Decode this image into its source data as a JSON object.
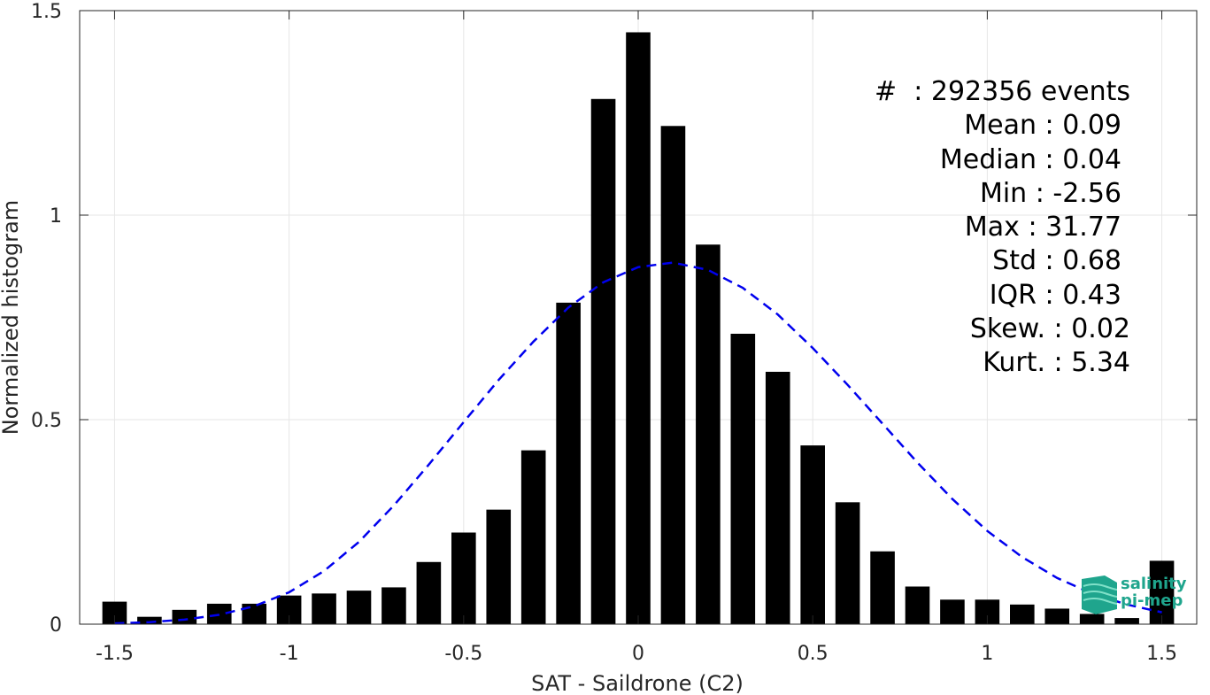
{
  "chart_data": {
    "type": "bar",
    "xlabel": "SAT - Saildrone (C2)",
    "ylabel": "Normalized histogram",
    "xlim": [
      -1.6,
      1.6
    ],
    "ylim": [
      0,
      1.5
    ],
    "xticks": [
      -1.5,
      -1,
      -0.5,
      0,
      0.5,
      1,
      1.5
    ],
    "xtick_labels": [
      "-1.5",
      "-1",
      "-0.5",
      "0",
      "0.5",
      "1",
      "1.5"
    ],
    "yticks": [
      0,
      0.5,
      1,
      1.5
    ],
    "ytick_labels": [
      "0",
      "0.5",
      "1",
      "1.5"
    ],
    "grid": true,
    "bin_width": 0.1,
    "x": [
      -1.5,
      -1.4,
      -1.3,
      -1.2,
      -1.1,
      -1.0,
      -0.9,
      -0.8,
      -0.7,
      -0.6,
      -0.5,
      -0.4,
      -0.3,
      -0.2,
      -0.1,
      0.0,
      0.1,
      0.2,
      0.3,
      0.4,
      0.5,
      0.6,
      0.7,
      0.8,
      0.9,
      1.0,
      1.1,
      1.2,
      1.3,
      1.4,
      1.5
    ],
    "values": [
      0.055,
      0.018,
      0.035,
      0.05,
      0.05,
      0.07,
      0.075,
      0.082,
      0.09,
      0.152,
      0.224,
      0.28,
      0.425,
      0.786,
      1.284,
      1.447,
      1.218,
      0.928,
      0.71,
      0.617,
      0.437,
      0.298,
      0.178,
      0.092,
      0.06,
      0.06,
      0.048,
      0.038,
      0.025,
      0.015,
      0.155
    ],
    "bar_color": "#000000",
    "fit": {
      "name": "",
      "style": "dashed",
      "color": "#0000ee",
      "x": [
        -1.5,
        -1.4,
        -1.3,
        -1.2,
        -1.1,
        -1.0,
        -0.9,
        -0.8,
        -0.7,
        -0.6,
        -0.5,
        -0.4,
        -0.3,
        -0.2,
        -0.1,
        0.0,
        0.1,
        0.2,
        0.3,
        0.4,
        0.5,
        0.6,
        0.7,
        0.8,
        0.9,
        1.0,
        1.1,
        1.2,
        1.3,
        1.4,
        1.5
      ],
      "values": [
        0.002,
        0.005,
        0.011,
        0.023,
        0.044,
        0.078,
        0.13,
        0.201,
        0.29,
        0.39,
        0.494,
        0.597,
        0.691,
        0.774,
        0.836,
        0.873,
        0.884,
        0.866,
        0.822,
        0.757,
        0.675,
        0.585,
        0.49,
        0.395,
        0.306,
        0.228,
        0.164,
        0.113,
        0.075,
        0.048,
        0.029
      ]
    }
  },
  "stats": [
    "#  : 292356 events",
    "Mean : 0.09",
    "Median : 0.04",
    "Min : -2.56",
    "Max : 31.77",
    "Std : 0.68",
    "IQR : 0.43",
    "Skew. : 0.02",
    "Kurt. : 5.34"
  ],
  "logo": {
    "line1": "salinity",
    "line2": "pi-mep",
    "color": "#1fa58d"
  }
}
